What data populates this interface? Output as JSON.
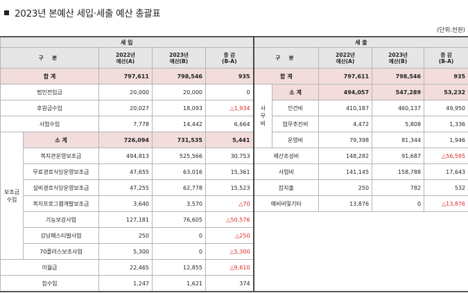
{
  "title": "2023년 본예산 세입·세출 예산 총괄표",
  "unit": "(단위:천원)",
  "header": {
    "revenue": "세                          입",
    "expenditure": "세                         출",
    "category": "구     분",
    "y2022": "2022년\n예산(A)",
    "y2023": "2023년\n예산(B)",
    "diff": "증  감\n(B-A)"
  },
  "revenue": {
    "total": {
      "label": "합    계",
      "a": "797,611",
      "b": "798,546",
      "d": "935"
    },
    "r1": {
      "label": "법인전입금",
      "a": "20,000",
      "b": "20,000",
      "d": "0"
    },
    "r2": {
      "label": "후원금수입",
      "a": "20,027",
      "b": "18,093",
      "d": "△1,934"
    },
    "r3": {
      "label": "사업수입",
      "a": "7,778",
      "b": "14,442",
      "d": "6,664"
    },
    "group_label": "보조금\n수입",
    "subtotal": {
      "label": "소  계",
      "a": "726,094",
      "b": "731,535",
      "d": "5,441"
    },
    "s1": {
      "label": "복지관운영보조금",
      "a": "494,813",
      "b": "525,566",
      "d": "30,753"
    },
    "s2": {
      "label": "무료경로식당운영보조금",
      "a": "47,655",
      "b": "63,016",
      "d": "15,361"
    },
    "s3": {
      "label": "실비경로식당운영보조금",
      "a": "47,255",
      "b": "62,778",
      "d": "15,523"
    },
    "s4": {
      "label": "복지프로그램개발보조금",
      "a": "3,640",
      "b": "3,570",
      "d": "△70"
    },
    "s5": {
      "label": "기능보강사업",
      "a": "127,181",
      "b": "76,605",
      "d": "△50,576"
    },
    "s6": {
      "label": "강남페스티벌사업",
      "a": "250",
      "b": "0",
      "d": "△250"
    },
    "s7": {
      "label": "70플러스보조사업",
      "a": "5,300",
      "b": "0",
      "d": "△5,300"
    },
    "r4": {
      "label": "이월금",
      "a": "22,465",
      "b": "12,855",
      "d": "△9,610"
    },
    "r5": {
      "label": "잡수입",
      "a": "1,247",
      "b": "1,621",
      "d": "374"
    }
  },
  "expenditure": {
    "total": {
      "label": "합    계",
      "a": "797,611",
      "b": "798,546",
      "d": "935"
    },
    "group_label": "사\n무\n비",
    "subtotal": {
      "label": "소  계",
      "a": "494,057",
      "b": "547,289",
      "d": "53,232"
    },
    "g1": {
      "label": "인건비",
      "a": "410,187",
      "b": "460,137",
      "d": "49,950"
    },
    "g2": {
      "label": "업무추진비",
      "a": "4,472",
      "b": "5,808",
      "d": "1,336"
    },
    "g3": {
      "label": "운영비",
      "a": "79,398",
      "b": "81,344",
      "d": "1,946"
    },
    "e1": {
      "label": "재산조성비",
      "a": "148,282",
      "b": "91,687",
      "d": "△56,595"
    },
    "e2": {
      "label": "사업비",
      "a": "141,145",
      "b": "158,788",
      "d": "17,643"
    },
    "e3": {
      "label": "잡지출",
      "a": "250",
      "b": "782",
      "d": "532"
    },
    "e4": {
      "label": "예비비및기타",
      "a": "13,876",
      "b": "0",
      "d": "△13,876"
    }
  }
}
